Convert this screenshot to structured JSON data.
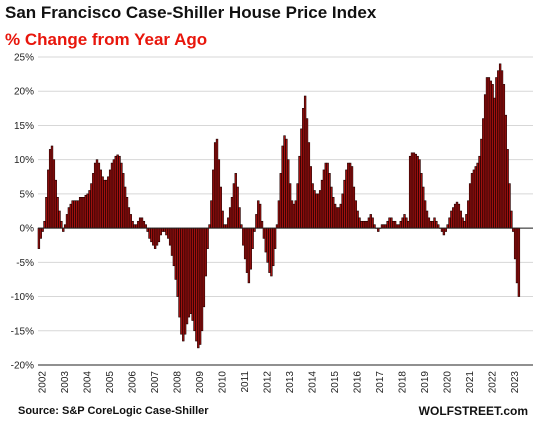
{
  "header": {
    "title": "San Francisco Case-Shiller House Price Index",
    "subtitle": "% Change from Year Ago"
  },
  "footer": {
    "source": "Source: S&P CoreLogic Case-Shiller",
    "credit": "WOLFSTREET.com"
  },
  "colors": {
    "bar_fill": "#a3100f",
    "bar_stroke": "#1a0000",
    "subtitle": "#e8160c",
    "grid": "#d7d7d7",
    "axis": "#222222"
  },
  "chart_data": {
    "type": "bar",
    "title": "San Francisco Case-Shiller House Price Index",
    "subtitle": "% Change from Year Ago",
    "xlabel": "",
    "ylabel": "",
    "ylim": [
      -20,
      25
    ],
    "y_ticks": [
      "-20%",
      "-15%",
      "-10%",
      "-5%",
      "0%",
      "5%",
      "10%",
      "15%",
      "20%",
      "25%"
    ],
    "y_tick_values": [
      -20,
      -15,
      -10,
      -5,
      0,
      5,
      10,
      15,
      20,
      25
    ],
    "x_ticks": [
      "2002",
      "2003",
      "2004",
      "2005",
      "2006",
      "2007",
      "2008",
      "2009",
      "2010",
      "2011",
      "2012",
      "2013",
      "2014",
      "2015",
      "2016",
      "2017",
      "2018",
      "2019",
      "2020",
      "2021",
      "2022",
      "2023"
    ],
    "x_start_year": 2002,
    "grid": true,
    "frequency": "monthly",
    "series": [
      {
        "name": "",
        "values": [
          -3.0,
          -1.5,
          -0.5,
          1.0,
          4.5,
          8.5,
          11.5,
          12.0,
          10.0,
          7.0,
          4.5,
          2.5,
          1.0,
          -0.5,
          0.5,
          2.0,
          3.0,
          3.5,
          4.0,
          4.0,
          4.0,
          4.0,
          4.5,
          4.5,
          4.5,
          4.8,
          5.0,
          5.5,
          6.5,
          8.0,
          9.5,
          10.0,
          9.5,
          8.5,
          7.5,
          7.0,
          7.0,
          7.5,
          8.5,
          9.5,
          10.0,
          10.5,
          10.7,
          10.5,
          9.5,
          8.0,
          6.0,
          4.5,
          3.0,
          2.0,
          1.0,
          0.5,
          0.5,
          1.0,
          1.5,
          1.5,
          1.0,
          0.5,
          -0.5,
          -1.5,
          -2.0,
          -2.5,
          -3.0,
          -2.5,
          -2.0,
          -1.0,
          -0.5,
          -0.5,
          -1.0,
          -1.5,
          -2.5,
          -4.0,
          -5.5,
          -7.5,
          -10.0,
          -13.0,
          -15.5,
          -16.5,
          -15.5,
          -14.0,
          -13.0,
          -12.5,
          -13.5,
          -15.0,
          -16.5,
          -17.5,
          -17.0,
          -15.0,
          -11.5,
          -7.0,
          -3.0,
          0.5,
          4.0,
          8.5,
          12.5,
          13.0,
          10.0,
          6.0,
          2.5,
          0.5,
          0.5,
          1.5,
          3.0,
          4.5,
          6.5,
          8.0,
          6.0,
          3.0,
          0.5,
          -2.5,
          -4.5,
          -6.5,
          -8.0,
          -6.0,
          -3.0,
          -0.5,
          2.0,
          4.0,
          3.5,
          1.0,
          -1.5,
          -3.5,
          -5.0,
          -6.5,
          -7.0,
          -5.5,
          -3.0,
          0.5,
          4.0,
          8.0,
          12.0,
          13.5,
          13.0,
          10.0,
          6.5,
          4.0,
          3.5,
          4.0,
          6.5,
          10.5,
          14.5,
          17.5,
          19.3,
          16.0,
          12.5,
          9.0,
          6.5,
          5.5,
          5.0,
          5.0,
          5.5,
          7.0,
          8.5,
          9.5,
          9.5,
          8.0,
          6.0,
          4.5,
          3.5,
          3.0,
          3.0,
          3.5,
          5.0,
          7.0,
          8.5,
          9.5,
          9.5,
          9.0,
          6.0,
          4.0,
          2.5,
          1.5,
          1.0,
          1.0,
          1.0,
          1.0,
          1.5,
          2.0,
          1.5,
          0.5,
          0.0,
          -0.5,
          0.0,
          0.5,
          0.5,
          0.5,
          1.0,
          1.5,
          1.5,
          1.0,
          1.0,
          0.5,
          0.5,
          1.0,
          1.5,
          2.0,
          1.5,
          1.0,
          10.5,
          11.0,
          11.0,
          10.8,
          10.5,
          10.0,
          8.0,
          6.0,
          4.0,
          2.5,
          1.5,
          1.0,
          1.0,
          1.5,
          1.0,
          0.5,
          0.0,
          -0.5,
          -1.0,
          -0.5,
          0.5,
          1.5,
          2.5,
          3.0,
          3.5,
          3.8,
          3.5,
          2.5,
          1.5,
          1.0,
          2.0,
          4.0,
          6.5,
          8.0,
          8.5,
          9.0,
          9.5,
          10.5,
          13.0,
          16.0,
          19.5,
          22.0,
          22.0,
          21.5,
          21.0,
          19.0,
          22.0,
          23.0,
          24.0,
          23.0,
          21.0,
          16.5,
          11.5,
          6.5,
          2.5,
          -0.5,
          -4.5,
          -8.0,
          -10.0
        ]
      }
    ]
  }
}
